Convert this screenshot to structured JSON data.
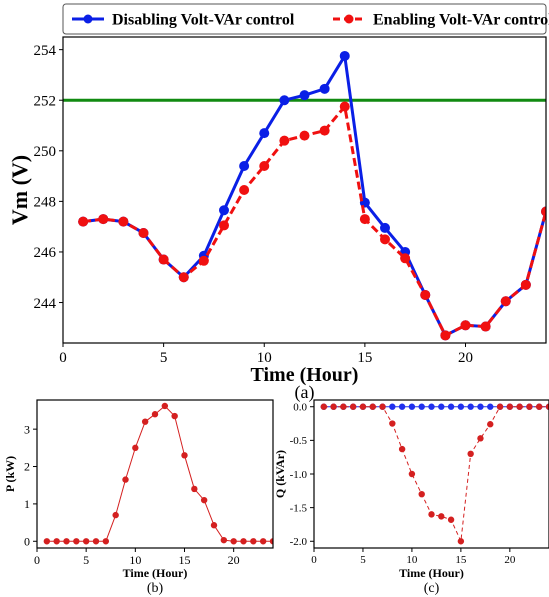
{
  "legend": {
    "series_disable": "Disabling Volt-VAr control",
    "series_enable": "Enabling Volt-VAr control"
  },
  "colors": {
    "disable": "#0a1fe6",
    "enable": "#f01010",
    "limit": "#118a11",
    "q_flat": "#2030ee",
    "pq": "#d42020"
  },
  "chart_data": [
    {
      "id": "a",
      "type": "line",
      "caption": "(a)",
      "xlabel": "Time (Hour)",
      "ylabel": "Vm (V)",
      "xlim": [
        0,
        24
      ],
      "ylim": [
        242.4,
        254.5
      ],
      "xticks": [
        0,
        5,
        10,
        15,
        20
      ],
      "yticks": [
        244,
        246,
        248,
        250,
        252,
        254
      ],
      "legend_position": "top",
      "grid": false,
      "limit_line": 252,
      "x": [
        1,
        2,
        3,
        4,
        5,
        6,
        7,
        8,
        9,
        10,
        11,
        12,
        13,
        14,
        15,
        16,
        17,
        18,
        19,
        20,
        21,
        22,
        23,
        24
      ],
      "series": [
        {
          "name": "Disabling Volt-VAr control",
          "values": [
            247.2,
            247.3,
            247.2,
            246.75,
            245.7,
            245.0,
            245.85,
            247.65,
            249.4,
            250.7,
            252.0,
            252.2,
            252.45,
            253.75,
            247.95,
            246.95,
            246.0,
            244.3,
            242.7,
            243.1,
            243.05,
            244.05,
            244.7,
            247.6
          ]
        },
        {
          "name": "Enabling Volt-VAr control",
          "values": [
            247.2,
            247.3,
            247.2,
            246.75,
            245.7,
            245.0,
            245.65,
            247.05,
            248.45,
            249.4,
            250.4,
            250.6,
            250.8,
            251.75,
            247.3,
            246.5,
            245.75,
            244.3,
            242.7,
            243.1,
            243.05,
            244.05,
            244.7,
            247.6
          ]
        }
      ]
    },
    {
      "id": "b",
      "type": "line",
      "caption": "(b)",
      "xlabel": "Time (Hour)",
      "ylabel": "P (kW)",
      "xlim": [
        0,
        24
      ],
      "ylim": [
        -0.18,
        3.78
      ],
      "xticks": [
        0,
        5,
        10,
        15,
        20
      ],
      "yticks": [
        0,
        1,
        2,
        3
      ],
      "grid": false,
      "x": [
        1,
        2,
        3,
        4,
        5,
        6,
        7,
        8,
        9,
        10,
        11,
        12,
        13,
        14,
        15,
        16,
        17,
        18,
        19,
        20,
        21,
        22,
        23,
        24
      ],
      "series": [
        {
          "values": [
            0,
            0,
            0,
            0,
            0,
            0,
            0,
            0.7,
            1.65,
            2.5,
            3.2,
            3.4,
            3.62,
            3.35,
            2.3,
            1.4,
            1.1,
            0.43,
            0.03,
            0,
            0,
            0,
            0,
            0
          ]
        }
      ]
    },
    {
      "id": "c",
      "type": "line",
      "caption": "(c)",
      "xlabel": "Time (Hour)",
      "ylabel": "Q (kVAr)",
      "xlim": [
        0,
        24
      ],
      "ylim": [
        -2.1,
        0.1
      ],
      "xticks": [
        0,
        5,
        10,
        15,
        20
      ],
      "yticks": [
        0.0,
        -0.5,
        -1.0,
        -1.5,
        -2.0
      ],
      "ytick_labels": [
        "0.0",
        "-0.5",
        "-1.0",
        "-1.5",
        "-2.0"
      ],
      "grid": false,
      "x": [
        1,
        2,
        3,
        4,
        5,
        6,
        7,
        8,
        9,
        10,
        11,
        12,
        13,
        14,
        15,
        16,
        17,
        18,
        19,
        20,
        21,
        22,
        23,
        24
      ],
      "series": [
        {
          "name": "Disabling Volt-VAr control",
          "values": [
            0,
            0,
            0,
            0,
            0,
            0,
            0,
            0,
            0,
            0,
            0,
            0,
            0,
            0,
            0,
            0,
            0,
            0,
            0,
            0,
            0,
            0,
            0,
            0
          ]
        },
        {
          "name": "Enabling Volt-VAr control",
          "values": [
            0,
            0,
            0,
            0,
            0,
            0,
            0,
            -0.25,
            -0.63,
            -1.0,
            -1.3,
            -1.6,
            -1.63,
            -1.68,
            -2.0,
            -0.7,
            -0.47,
            -0.26,
            0,
            0,
            0,
            0,
            0,
            0
          ]
        }
      ]
    }
  ]
}
